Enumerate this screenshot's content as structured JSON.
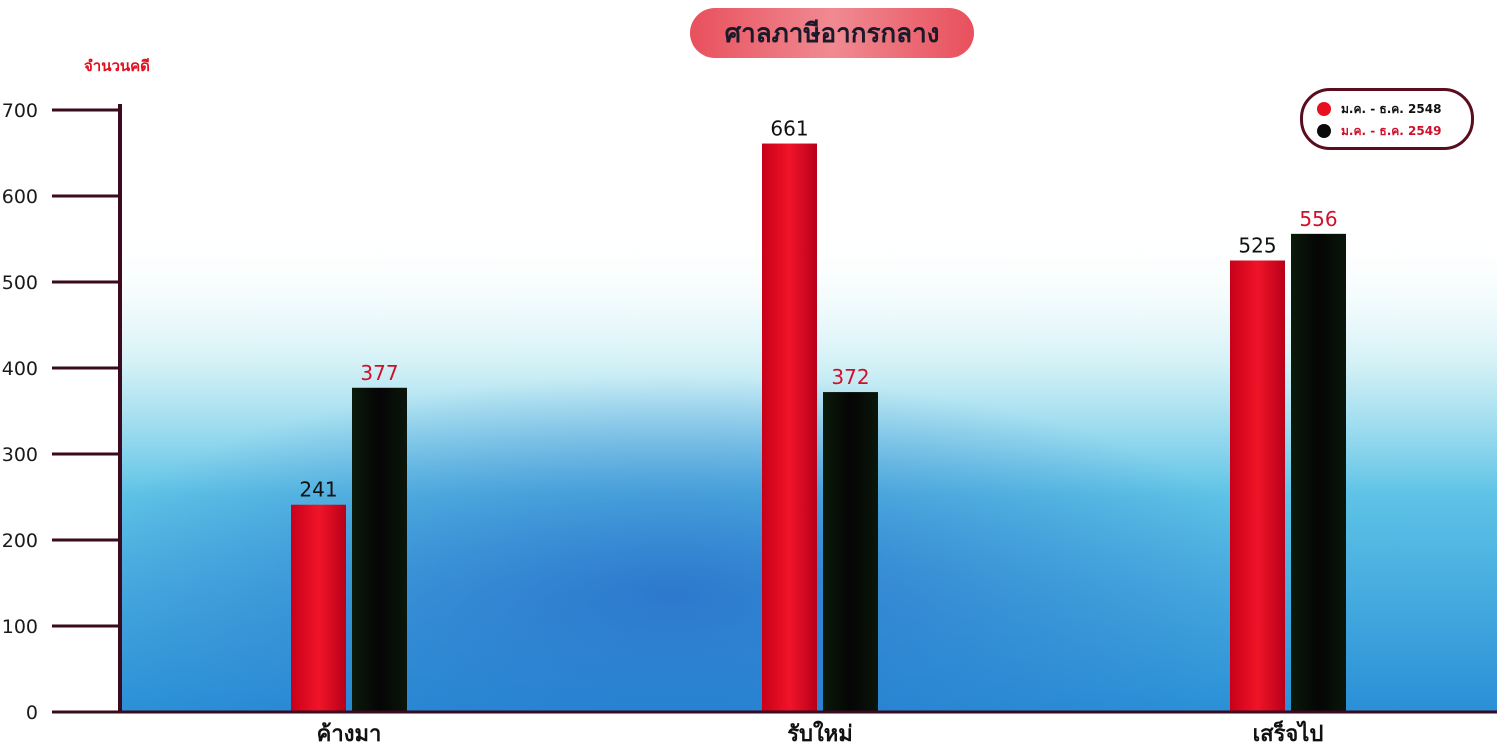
{
  "chart_data": {
    "type": "bar",
    "title": "ศาลภาษีอากรกลาง",
    "ylabel": "จำนวนคดี",
    "xlabel": "",
    "categories": [
      "ค้างมา",
      "รับใหม่",
      "เสร็จไป"
    ],
    "series": [
      {
        "name": "ม.ค. - ธ.ค. 2548",
        "values": [
          241,
          661,
          525
        ],
        "color": "#e8101e",
        "label_color": "#111111"
      },
      {
        "name": "ม.ค. - ธ.ค. 2549",
        "values": [
          377,
          372,
          556
        ],
        "color": "#0a0a0a",
        "label_color": "#d0102a"
      }
    ],
    "yticks": [
      0,
      100,
      200,
      300,
      400,
      500,
      600,
      700
    ],
    "ylim": [
      0,
      700
    ],
    "grid": false,
    "legend_position": "top-right"
  },
  "colors": {
    "axis": "#3a0a1e",
    "title_pill": "#e8505c",
    "ylabel": "#e0101e"
  }
}
